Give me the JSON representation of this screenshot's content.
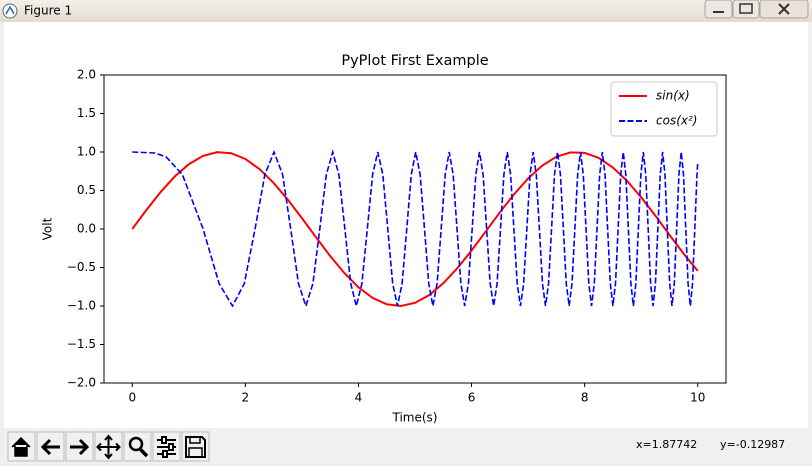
{
  "window": {
    "title": "Figure 1"
  },
  "chart_data": {
    "type": "line",
    "title": "PyPlot First Example",
    "x_label": "Time(s)",
    "y_label": "Volt",
    "xlim": [
      -0.5,
      10.5
    ],
    "ylim": [
      -2,
      2
    ],
    "xticks": [
      0,
      2,
      4,
      6,
      8,
      10
    ],
    "yticks": [
      {
        "value": -2,
        "label": "−2.0"
      },
      {
        "value": -1.5,
        "label": "−1.5"
      },
      {
        "value": -1,
        "label": "−1.0"
      },
      {
        "value": -0.5,
        "label": "−0.5"
      },
      {
        "value": 0,
        "label": "0.0"
      },
      {
        "value": 0.5,
        "label": "0.5"
      },
      {
        "value": 1,
        "label": "1.0"
      },
      {
        "value": 1.5,
        "label": "1.5"
      },
      {
        "value": 2,
        "label": "2.0"
      }
    ],
    "legend": "upper right",
    "series": [
      {
        "name": "sin(x)",
        "color": "#ff0000",
        "dash": "solid",
        "x": [
          0,
          0.25,
          0.5,
          0.75,
          1,
          1.25,
          1.5,
          1.75,
          2,
          2.25,
          2.5,
          2.75,
          3,
          3.25,
          3.5,
          3.75,
          4,
          4.25,
          4.5,
          4.75,
          5,
          5.25,
          5.5,
          5.75,
          6,
          6.25,
          6.5,
          6.75,
          7,
          7.25,
          7.5,
          7.75,
          8,
          8.25,
          8.5,
          8.75,
          9,
          9.25,
          9.5,
          9.75,
          10
        ],
        "values": [
          0,
          0.2474,
          0.4794,
          0.6816,
          0.8415,
          0.949,
          0.9975,
          0.984,
          0.9093,
          0.7781,
          0.5985,
          0.3817,
          0.1411,
          -0.1082,
          -0.3508,
          -0.5716,
          -0.7568,
          -0.895,
          -0.9775,
          -0.9993,
          -0.9589,
          -0.8589,
          -0.7055,
          -0.5083,
          -0.2794,
          -0.0332,
          0.2151,
          0.45,
          0.657,
          0.8231,
          0.938,
          0.9946,
          0.9894,
          0.9228,
          0.7985,
          0.6247,
          0.4121,
          0.1743,
          -0.0752,
          -0.3195,
          -0.544
        ]
      },
      {
        "name": "cos(x²)",
        "color": "#0000ff",
        "dash": "dashed",
        "x": [
          0,
          0.4,
          0.6,
          0.886,
          1.253,
          1.535,
          1.772,
          1.982,
          2.171,
          2.345,
          2.507,
          2.659,
          2.802,
          2.939,
          3.07,
          3.195,
          3.316,
          3.432,
          3.545,
          3.654,
          3.76,
          3.863,
          3.963,
          4.061,
          4.157,
          4.25,
          4.342,
          4.431,
          4.519,
          4.605,
          4.69,
          4.772,
          4.854,
          4.934,
          5.013,
          5.091,
          5.168,
          5.243,
          5.317,
          5.391,
          5.463,
          5.534,
          5.605,
          5.675,
          5.743,
          5.811,
          5.879,
          5.945,
          6.011,
          6.076,
          6.14,
          6.204,
          6.267,
          6.329,
          6.391,
          6.452,
          6.512,
          6.572,
          6.632,
          6.691,
          6.749,
          6.807,
          6.865,
          6.922,
          6.978,
          7.034,
          7.09,
          7.145,
          7.2,
          7.254,
          7.308,
          7.362,
          7.415,
          7.467,
          7.52,
          7.572,
          7.624,
          7.675,
          7.726,
          7.777,
          7.827,
          7.877,
          7.927,
          7.976,
          8.025,
          8.074,
          8.122,
          8.171,
          8.219,
          8.266,
          8.314,
          8.361,
          8.407,
          8.454,
          8.5,
          8.546,
          8.592,
          8.638,
          8.683,
          8.728,
          8.773,
          8.818,
          8.862,
          8.906,
          8.95,
          8.994,
          9.038,
          9.081,
          9.124,
          9.167,
          9.21,
          9.252,
          9.295,
          9.337,
          9.379,
          9.421,
          9.462,
          9.504,
          9.545,
          9.586,
          9.627,
          9.668,
          9.708,
          9.748,
          9.789,
          9.829,
          9.869,
          9.908,
          9.948,
          9.987,
          10
        ],
        "values": [
          1,
          0.9872,
          0.9359,
          0.7071,
          0,
          -0.7071,
          -1,
          -0.7071,
          0,
          0.7071,
          1,
          0.7071,
          0,
          -0.7071,
          -1,
          -0.7071,
          0,
          0.7071,
          1,
          0.7071,
          0,
          -0.7071,
          -1,
          -0.7071,
          0,
          0.7071,
          1,
          0.7071,
          0,
          -0.7071,
          -1,
          -0.7071,
          0,
          0.7071,
          1,
          0.7071,
          0,
          -0.7071,
          -1,
          -0.7071,
          0,
          0.7071,
          1,
          0.7071,
          0,
          -0.7071,
          -1,
          -0.7071,
          0,
          0.7071,
          1,
          0.7071,
          0,
          -0.7071,
          -1,
          -0.7071,
          0,
          0.7071,
          1,
          0.7071,
          0,
          -0.7071,
          -1,
          -0.7071,
          0,
          0.7071,
          1,
          0.7071,
          0,
          -0.7071,
          -1,
          -0.7071,
          0,
          0.7071,
          1,
          0.7071,
          0,
          -0.7071,
          -1,
          -0.7071,
          0,
          0.7071,
          1,
          0.7071,
          0,
          -0.7071,
          -1,
          -0.7071,
          0,
          0.7071,
          1,
          0.7071,
          0,
          -0.7071,
          -1,
          -0.7071,
          0,
          0.7071,
          1,
          0.7071,
          0,
          -0.7071,
          -1,
          -0.7071,
          0,
          0.7071,
          1,
          0.7071,
          0,
          -0.7071,
          -1,
          -0.7071,
          0,
          0.7071,
          1,
          0.7071,
          0,
          -0.7071,
          -1,
          -0.7071,
          0,
          0.7071,
          1,
          0.7071,
          0,
          -0.7071,
          -1,
          -0.7071,
          0,
          0.7071,
          0.8623
        ]
      }
    ]
  },
  "status": {
    "x": "x=1.87742",
    "y": "y=-0.12987"
  }
}
